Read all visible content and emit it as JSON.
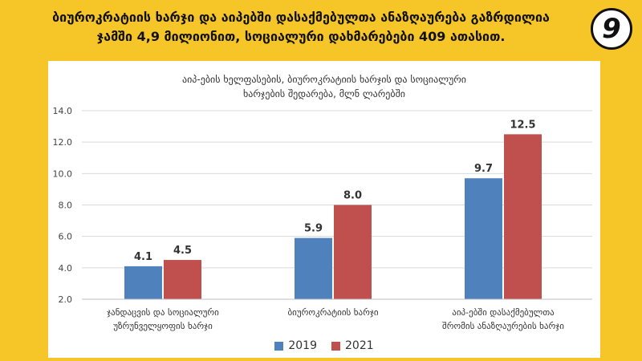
{
  "header": {
    "headline_line1": "ბიუროკრატიის ხარჯი და აიპებში დასაქმებულთა ანაზღაურება გაზრდილია",
    "headline_line2": "ჯამში 4,9 მილიონით, სოციალური დახმარებები 409 ათასით.",
    "badge": "9"
  },
  "colors": {
    "page_background": "#f6c628",
    "series_2019": "#4f81bd",
    "series_2021": "#c0504d"
  },
  "chart_data": {
    "type": "bar",
    "title_line1": "აიპ-ების ხელფასების, ბიუროკრატიის ხარჯის და სოციალური",
    "title_line2": "ხარჯების შედარება, მლნ ლარებში",
    "categories": [
      [
        "ჯანდაცვის და სოციალური",
        "უზრუნველყოფის ხარჯი"
      ],
      [
        "ბიუროკრატიის ხარჯი"
      ],
      [
        "აიპ-ებში დასაქმებულთა",
        "შრომის ანაზღაურების ხარჯი"
      ]
    ],
    "series": [
      {
        "name": "2019",
        "values": [
          4.1,
          5.9,
          9.7
        ],
        "labels": [
          "4.1",
          "5.9",
          "9.7"
        ],
        "color": "#4f81bd"
      },
      {
        "name": "2021",
        "values": [
          4.5,
          8.0,
          12.5
        ],
        "labels": [
          "4.5",
          "8.0",
          "12.5"
        ],
        "color": "#c0504d"
      }
    ],
    "ylim": [
      2.0,
      14.0
    ],
    "yticks": [
      "2.0",
      "4.0",
      "6.0",
      "8.0",
      "10.0",
      "12.0",
      "14.0"
    ],
    "grid": true,
    "legend_position": "bottom-center"
  }
}
